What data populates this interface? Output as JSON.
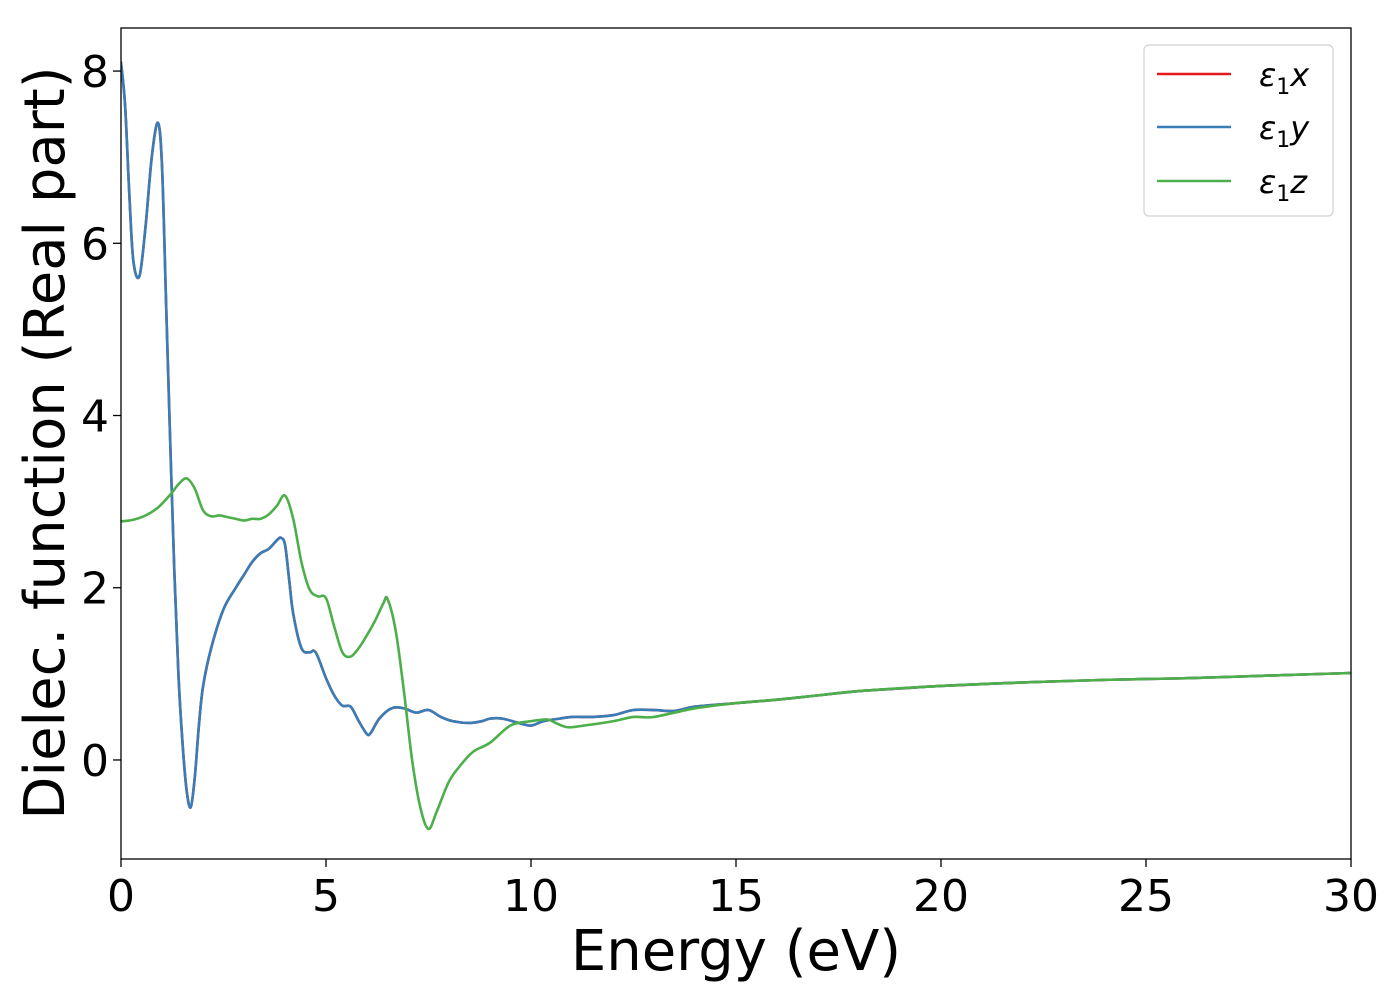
{
  "chart_data": {
    "type": "line",
    "title": "",
    "xlabel": "Energy (eV)",
    "ylabel": "Dielec. function (Real part)",
    "xlim": [
      0,
      30
    ],
    "ylim": [
      -1.15,
      8.5
    ],
    "xticks": [
      0,
      5,
      10,
      15,
      20,
      25,
      30
    ],
    "yticks": [
      0,
      2,
      4,
      6,
      8
    ],
    "grid": false,
    "legend_position": "top-right",
    "series": [
      {
        "name": "ε1x",
        "color": "#e41a1c",
        "x": [
          0,
          0.1,
          0.2,
          0.3,
          0.45,
          0.6,
          0.75,
          0.9,
          1.0,
          1.1,
          1.2,
          1.3,
          1.4,
          1.5,
          1.6,
          1.7,
          1.8,
          1.9,
          2.0,
          2.2,
          2.5,
          2.8,
          3.0,
          3.2,
          3.4,
          3.6,
          3.8,
          3.9,
          4.0,
          4.1,
          4.2,
          4.4,
          4.6,
          4.7,
          4.8,
          5.0,
          5.2,
          5.4,
          5.6,
          5.8,
          6.0,
          6.1,
          6.3,
          6.6,
          6.9,
          7.2,
          7.5,
          7.8,
          8.1,
          8.5,
          8.8,
          9.0,
          9.3,
          9.7,
          10.0,
          10.3,
          10.7,
          11.0,
          11.5,
          12.0,
          12.5,
          13.0,
          13.5,
          14.0,
          15.0,
          16.0,
          17.0,
          18.0,
          19.0,
          20.0,
          22.0,
          24.0,
          26.0,
          28.0,
          30.0
        ],
        "values": [
          8.1,
          7.6,
          6.6,
          5.8,
          5.62,
          6.2,
          7.0,
          7.4,
          6.9,
          5.3,
          3.7,
          2.2,
          1.0,
          0.2,
          -0.35,
          -0.55,
          -0.2,
          0.4,
          0.85,
          1.3,
          1.75,
          2.0,
          2.15,
          2.3,
          2.4,
          2.45,
          2.55,
          2.58,
          2.5,
          2.1,
          1.7,
          1.3,
          1.25,
          1.27,
          1.2,
          0.95,
          0.75,
          0.63,
          0.62,
          0.45,
          0.3,
          0.32,
          0.48,
          0.6,
          0.6,
          0.55,
          0.58,
          0.5,
          0.45,
          0.43,
          0.45,
          0.48,
          0.48,
          0.43,
          0.4,
          0.45,
          0.48,
          0.5,
          0.5,
          0.52,
          0.58,
          0.58,
          0.57,
          0.62,
          0.66,
          0.7,
          0.75,
          0.8,
          0.83,
          0.86,
          0.9,
          0.93,
          0.95,
          0.98,
          1.01
        ]
      },
      {
        "name": "ε1y",
        "color": "#377eb8",
        "x": [
          0,
          0.1,
          0.2,
          0.3,
          0.45,
          0.6,
          0.75,
          0.9,
          1.0,
          1.1,
          1.2,
          1.3,
          1.4,
          1.5,
          1.6,
          1.7,
          1.8,
          1.9,
          2.0,
          2.2,
          2.5,
          2.8,
          3.0,
          3.2,
          3.4,
          3.6,
          3.8,
          3.9,
          4.0,
          4.1,
          4.2,
          4.4,
          4.6,
          4.7,
          4.8,
          5.0,
          5.2,
          5.4,
          5.6,
          5.8,
          6.0,
          6.1,
          6.3,
          6.6,
          6.9,
          7.2,
          7.5,
          7.8,
          8.1,
          8.5,
          8.8,
          9.0,
          9.3,
          9.7,
          10.0,
          10.3,
          10.7,
          11.0,
          11.5,
          12.0,
          12.5,
          13.0,
          13.5,
          14.0,
          15.0,
          16.0,
          17.0,
          18.0,
          19.0,
          20.0,
          22.0,
          24.0,
          26.0,
          28.0,
          30.0
        ],
        "values": [
          8.1,
          7.6,
          6.6,
          5.8,
          5.62,
          6.2,
          7.0,
          7.4,
          6.9,
          5.3,
          3.7,
          2.2,
          1.0,
          0.2,
          -0.35,
          -0.55,
          -0.2,
          0.4,
          0.85,
          1.3,
          1.75,
          2.0,
          2.15,
          2.3,
          2.4,
          2.45,
          2.55,
          2.58,
          2.5,
          2.1,
          1.7,
          1.3,
          1.25,
          1.27,
          1.2,
          0.95,
          0.75,
          0.63,
          0.62,
          0.45,
          0.3,
          0.32,
          0.48,
          0.6,
          0.6,
          0.55,
          0.58,
          0.5,
          0.45,
          0.43,
          0.45,
          0.48,
          0.48,
          0.43,
          0.4,
          0.45,
          0.48,
          0.5,
          0.5,
          0.52,
          0.58,
          0.58,
          0.57,
          0.62,
          0.66,
          0.7,
          0.75,
          0.8,
          0.83,
          0.86,
          0.9,
          0.93,
          0.95,
          0.98,
          1.01
        ]
      },
      {
        "name": "ε1z",
        "color": "#4daf4a",
        "x": [
          0,
          0.3,
          0.6,
          0.9,
          1.2,
          1.4,
          1.6,
          1.8,
          2.0,
          2.2,
          2.4,
          2.6,
          2.8,
          3.0,
          3.2,
          3.4,
          3.6,
          3.8,
          4.0,
          4.2,
          4.4,
          4.6,
          4.8,
          5.0,
          5.2,
          5.4,
          5.6,
          5.8,
          6.0,
          6.2,
          6.4,
          6.5,
          6.7,
          6.9,
          7.1,
          7.3,
          7.5,
          7.7,
          8.0,
          8.3,
          8.6,
          9.0,
          9.5,
          10.0,
          10.4,
          10.6,
          10.9,
          11.3,
          12.0,
          12.5,
          13.0,
          14.0,
          15.0,
          16.0,
          17.0,
          18.0,
          20.0,
          22.0,
          24.0,
          26.0,
          28.0,
          30.0
        ],
        "values": [
          2.77,
          2.79,
          2.84,
          2.93,
          3.08,
          3.2,
          3.27,
          3.15,
          2.9,
          2.83,
          2.84,
          2.82,
          2.8,
          2.78,
          2.8,
          2.8,
          2.85,
          2.95,
          3.07,
          2.8,
          2.3,
          1.98,
          1.9,
          1.88,
          1.55,
          1.25,
          1.2,
          1.3,
          1.45,
          1.62,
          1.82,
          1.87,
          1.5,
          0.8,
          0.0,
          -0.55,
          -0.8,
          -0.6,
          -0.25,
          -0.05,
          0.1,
          0.2,
          0.4,
          0.45,
          0.47,
          0.43,
          0.38,
          0.4,
          0.45,
          0.5,
          0.5,
          0.6,
          0.66,
          0.7,
          0.75,
          0.8,
          0.86,
          0.9,
          0.93,
          0.95,
          0.98,
          1.01
        ]
      }
    ]
  },
  "legend": {
    "items": [
      {
        "base": "ε",
        "sub": "1",
        "axis": "x",
        "color": "#e41a1c"
      },
      {
        "base": "ε",
        "sub": "1",
        "axis": "y",
        "color": "#377eb8"
      },
      {
        "base": "ε",
        "sub": "1",
        "axis": "z",
        "color": "#4daf4a"
      }
    ]
  }
}
